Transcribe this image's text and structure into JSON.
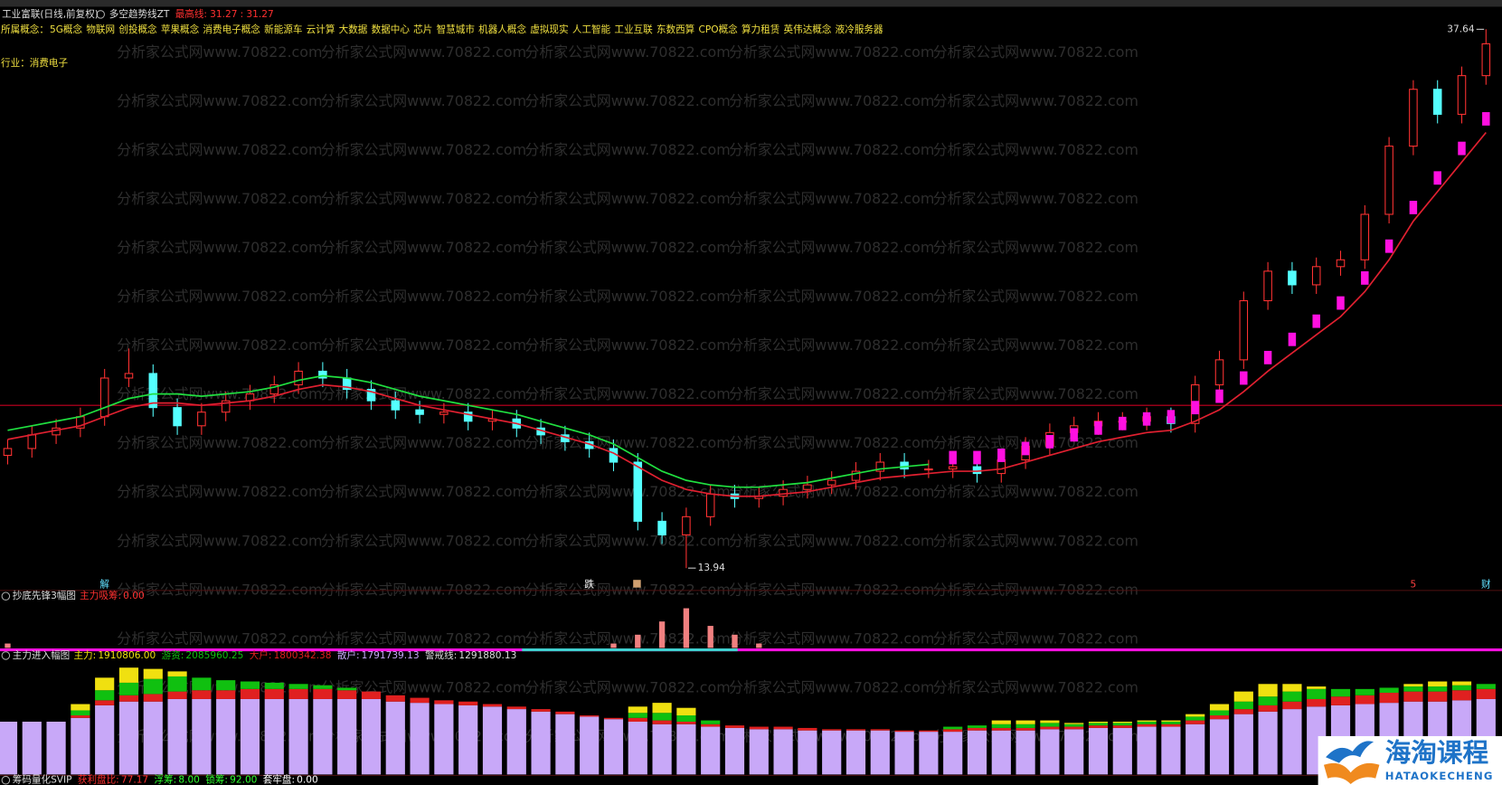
{
  "header": {
    "title": "工业富联(日线,前复权)",
    "indicator": "多空趋势线ZT",
    "ref_name": "最高线:",
    "ref_values": [
      31.27,
      31.27
    ],
    "ref_separator": ":",
    "concepts_label": "所属概念：",
    "concepts": [
      "5G概念",
      "物联网",
      "创投概念",
      "苹果概念",
      "消费电子概念",
      "新能源车",
      "云计算",
      "大数据",
      "数据中心",
      "芯片",
      "智慧城市",
      "机器人概念",
      "虚拟现实",
      "人工智能",
      "工业互联",
      "东数西算",
      "CPO概念",
      "算力租赁",
      "英伟达概念",
      "液冷服务器"
    ],
    "industry": "行业：消费电子"
  },
  "watermark": "分析家公式网www.70822.com",
  "logo": {
    "title": "海淘课程",
    "subtitle": "HATAOKECHENG"
  },
  "chart_data": [
    {
      "type": "candlestick",
      "open": [
        18.9,
        19.2,
        19.8,
        20.1,
        20.6,
        22.3,
        22.5,
        21.0,
        20.2,
        20.8,
        21.3,
        21.6,
        22.0,
        22.6,
        22.3,
        21.8,
        21.3,
        20.9,
        20.7,
        20.8,
        20.4,
        20.5,
        20.1,
        19.8,
        19.5,
        19.2,
        18.6,
        16.0,
        15.4,
        16.2,
        17.2,
        17.0,
        17.1,
        17.4,
        17.6,
        17.8,
        18.2,
        18.6,
        18.3,
        18.3,
        18.4,
        18.1,
        18.7,
        19.3,
        19.9,
        20.2,
        20.4,
        20.4,
        20.6,
        20.3,
        22.0,
        23.1,
        25.7,
        27.0,
        26.4,
        27.2,
        27.5,
        29.5,
        32.5,
        35.0,
        33.9,
        35.6
      ],
      "high": [
        19.6,
        20.2,
        20.5,
        21.0,
        22.7,
        23.6,
        22.9,
        21.4,
        21.2,
        21.7,
        22.0,
        22.4,
        23.0,
        23.0,
        22.7,
        22.2,
        21.7,
        21.3,
        21.2,
        21.2,
        20.9,
        20.9,
        20.5,
        20.2,
        19.9,
        19.6,
        19.0,
        16.4,
        16.6,
        17.6,
        17.6,
        17.5,
        17.8,
        18.0,
        18.2,
        18.6,
        19.0,
        19.0,
        18.7,
        18.8,
        18.8,
        19.1,
        19.7,
        20.3,
        20.6,
        20.8,
        20.8,
        21.0,
        21.0,
        22.4,
        23.5,
        26.1,
        27.4,
        27.4,
        27.6,
        27.9,
        29.9,
        32.9,
        35.4,
        35.4,
        36.0,
        37.64
      ],
      "low": [
        18.5,
        18.8,
        19.4,
        19.7,
        20.2,
        21.9,
        20.6,
        19.8,
        19.8,
        20.4,
        20.9,
        21.2,
        21.6,
        21.9,
        21.4,
        20.9,
        20.5,
        20.3,
        20.3,
        20.0,
        20.0,
        19.7,
        19.4,
        19.1,
        18.8,
        18.2,
        15.6,
        15.0,
        13.94,
        15.8,
        16.6,
        16.6,
        16.7,
        17.0,
        17.2,
        17.4,
        17.8,
        17.9,
        17.9,
        17.9,
        17.7,
        17.7,
        18.3,
        18.9,
        19.5,
        19.8,
        20.0,
        20.0,
        19.9,
        19.9,
        21.6,
        22.7,
        25.3,
        26.0,
        26.0,
        26.8,
        27.1,
        29.1,
        32.1,
        33.5,
        33.5,
        35.2
      ],
      "close": [
        19.2,
        19.8,
        20.1,
        20.6,
        22.3,
        22.5,
        21.0,
        20.2,
        20.8,
        21.3,
        21.6,
        22.0,
        22.6,
        22.3,
        21.8,
        21.3,
        20.9,
        20.7,
        20.8,
        20.4,
        20.5,
        20.1,
        19.8,
        19.5,
        19.2,
        18.6,
        16.0,
        15.4,
        16.2,
        17.2,
        17.0,
        17.1,
        17.4,
        17.6,
        17.8,
        18.2,
        18.6,
        18.3,
        18.3,
        18.4,
        18.1,
        18.7,
        19.3,
        19.9,
        20.2,
        20.4,
        20.4,
        20.6,
        20.3,
        22.0,
        23.1,
        25.7,
        27.0,
        26.4,
        27.2,
        27.5,
        29.5,
        32.5,
        35.0,
        33.9,
        35.6,
        37.0
      ],
      "up_color": "#ff3232",
      "down_color": "#54ffff",
      "ylim": [
        13,
        38
      ],
      "max_label": 37.64,
      "min_label": 13.94,
      "hline": {
        "value": 21.1,
        "color": "#c80020"
      },
      "overlays": [
        {
          "style": "line",
          "color": "#20e040",
          "values": [
            20.0,
            20.2,
            20.4,
            20.6,
            21.0,
            21.4,
            21.6,
            21.6,
            21.5,
            21.6,
            21.7,
            21.9,
            22.2,
            22.4,
            22.3,
            22.1,
            21.8,
            21.5,
            21.3,
            21.1,
            20.9,
            20.7,
            20.4,
            20.1,
            19.8,
            19.4,
            18.8,
            18.2,
            17.8,
            17.6,
            17.5,
            17.5,
            17.6,
            17.7,
            17.9,
            18.1,
            18.3,
            18.4,
            18.5,
            null,
            null,
            null,
            null,
            null,
            null,
            null,
            null,
            null,
            null,
            null,
            null,
            null,
            null,
            null,
            null,
            null,
            null,
            null,
            null,
            null,
            null,
            null
          ]
        },
        {
          "style": "line",
          "color": "#e02030",
          "values": [
            19.6,
            19.8,
            20.0,
            20.2,
            20.6,
            21.0,
            21.2,
            21.2,
            21.1,
            21.2,
            21.3,
            21.5,
            21.8,
            22.0,
            21.9,
            21.7,
            21.4,
            21.1,
            20.9,
            20.7,
            20.5,
            20.3,
            20.0,
            19.7,
            19.4,
            19.0,
            18.4,
            17.8,
            17.4,
            17.2,
            17.1,
            17.1,
            17.2,
            17.3,
            17.5,
            17.7,
            17.9,
            18.0,
            18.1,
            18.2,
            18.2,
            18.3,
            18.6,
            18.9,
            19.2,
            19.5,
            19.7,
            19.9,
            20.0,
            20.4,
            20.9,
            21.7,
            22.6,
            23.4,
            24.2,
            25.0,
            26.1,
            27.5,
            29.2,
            30.5,
            31.8,
            33.1
          ]
        },
        {
          "style": "block",
          "color": "#ff10e0",
          "values": [
            null,
            null,
            null,
            null,
            null,
            null,
            null,
            null,
            null,
            null,
            null,
            null,
            null,
            null,
            null,
            null,
            null,
            null,
            null,
            null,
            null,
            null,
            null,
            null,
            null,
            null,
            null,
            null,
            null,
            null,
            null,
            null,
            null,
            null,
            null,
            null,
            null,
            null,
            null,
            18.8,
            18.8,
            18.9,
            19.2,
            19.5,
            19.8,
            20.1,
            20.3,
            20.5,
            20.6,
            21.0,
            21.5,
            22.3,
            23.2,
            24.0,
            24.8,
            25.6,
            26.7,
            28.1,
            29.8,
            31.1,
            32.4,
            33.7
          ]
        }
      ],
      "signals": [
        {
          "index": 4,
          "text": "解",
          "color": "#60e0ff"
        },
        {
          "index": 24,
          "text": "跌",
          "color": "#ffffff"
        },
        {
          "index": 58,
          "text": "5",
          "color": "#ff4040"
        },
        {
          "index": 61,
          "text": "财",
          "color": "#60e0ff"
        }
      ]
    },
    {
      "type": "bar",
      "title": "抄底先锋3幅图",
      "indicator_name": "主力吸筹:",
      "indicator_value": {
        "value": 0,
        "label": "0.00"
      },
      "color": "#f08080",
      "ylim": [
        0,
        10
      ],
      "values": [
        1,
        0,
        0,
        0,
        0,
        0,
        0,
        0,
        0,
        0,
        0,
        0,
        0,
        0,
        0,
        0,
        0,
        0,
        0,
        0,
        0,
        0,
        0,
        0,
        0,
        1,
        3,
        6,
        9,
        5,
        3,
        1,
        0,
        0,
        0,
        0,
        0,
        0,
        0,
        0,
        0,
        0,
        0,
        0,
        0,
        0,
        0,
        0,
        0,
        0,
        0,
        0,
        0,
        0,
        0,
        0,
        0,
        0,
        0,
        0,
        0,
        0
      ]
    },
    {
      "type": "stacked_bar",
      "title": "主力进入幅图",
      "ylim": [
        0,
        90
      ],
      "series": [
        {
          "name": "散户:",
          "color": "#c8a8f8",
          "current": {
            "value": 1791739.13,
            "label": "1791739.13"
          },
          "values": [
            42,
            42,
            42,
            45,
            55,
            58,
            58,
            60,
            60,
            60,
            60,
            60,
            60,
            60,
            60,
            60,
            58,
            57,
            56,
            55,
            54,
            52,
            50,
            48,
            46,
            44,
            42,
            40,
            40,
            38,
            37,
            36,
            36,
            35,
            35,
            35,
            35,
            34,
            34,
            34,
            35,
            35,
            35,
            36,
            36,
            37,
            37,
            38,
            38,
            40,
            44,
            48,
            50,
            52,
            54,
            55,
            56,
            57,
            58,
            58,
            59,
            60
          ]
        },
        {
          "name": "大户:",
          "color": "#e02020",
          "current": {
            "value": 1800342.38,
            "label": "1800342.38"
          },
          "values": [
            0,
            0,
            0,
            2,
            4,
            5,
            6,
            6,
            7,
            7,
            8,
            8,
            8,
            8,
            7,
            6,
            5,
            4,
            3,
            3,
            2,
            2,
            2,
            2,
            1,
            1,
            3,
            3,
            2,
            2,
            2,
            2,
            2,
            2,
            1,
            1,
            1,
            1,
            1,
            2,
            2,
            2,
            2,
            2,
            2,
            2,
            2,
            2,
            2,
            3,
            3,
            4,
            5,
            6,
            6,
            7,
            7,
            8,
            8,
            8,
            8,
            8
          ]
        },
        {
          "name": "游资:",
          "color": "#10c010",
          "current": {
            "value": 2085960.25,
            "label": "2085960.25"
          },
          "values": [
            0,
            0,
            0,
            4,
            8,
            10,
            12,
            12,
            10,
            8,
            6,
            5,
            4,
            3,
            2,
            0,
            0,
            0,
            0,
            0,
            0,
            0,
            0,
            0,
            0,
            0,
            4,
            6,
            5,
            3,
            0,
            0,
            0,
            0,
            0,
            0,
            0,
            0,
            0,
            2,
            2,
            3,
            3,
            3,
            2,
            2,
            2,
            2,
            2,
            3,
            4,
            6,
            7,
            8,
            8,
            6,
            5,
            4,
            4,
            4,
            4,
            4
          ]
        },
        {
          "name": "主力:",
          "color": "#f0e010",
          "current": {
            "value": 1910806,
            "label": "1910806.00"
          },
          "values": [
            0,
            0,
            0,
            5,
            10,
            12,
            8,
            4,
            0,
            0,
            0,
            0,
            0,
            0,
            0,
            0,
            0,
            0,
            0,
            0,
            0,
            0,
            0,
            0,
            0,
            0,
            5,
            8,
            6,
            0,
            0,
            0,
            0,
            0,
            0,
            0,
            0,
            0,
            0,
            0,
            0,
            3,
            3,
            2,
            1,
            1,
            1,
            1,
            1,
            2,
            5,
            8,
            10,
            6,
            2,
            0,
            0,
            0,
            2,
            4,
            3,
            0
          ]
        }
      ],
      "warning_name": "警戒线:",
      "warning_value": {
        "value": 1291880.13,
        "label": "1291880.13"
      }
    }
  ],
  "chip_panel": {
    "title": "筹码量化SVIP",
    "items": [
      {
        "name": "获利盘比:",
        "value": 77.17,
        "color": "#ff3030"
      },
      {
        "name": "浮筹:",
        "value": {
          "value": 8,
          "label": "8.00"
        },
        "color": "#30ff30"
      },
      {
        "name": "锁筹:",
        "value": {
          "value": 92,
          "label": "92.00"
        },
        "color": "#30ff30"
      },
      {
        "name": "套牢盘:",
        "value": {
          "value": 0,
          "label": "0.00"
        },
        "color": "#ffffff"
      }
    ]
  }
}
